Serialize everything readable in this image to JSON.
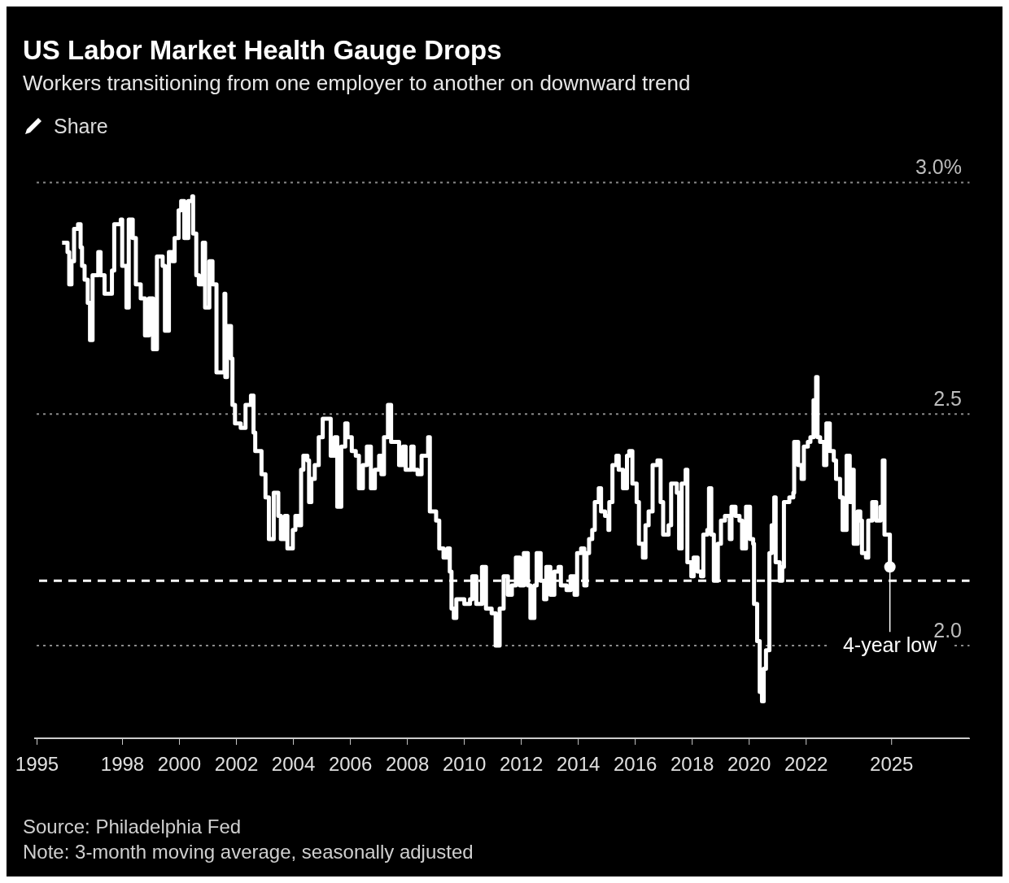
{
  "chart_data": {
    "type": "step",
    "title": "US Labor Market Health Gauge Drops",
    "subtitle": "Workers transitioning from one employer to another on downward trend",
    "annotations": [
      "Share",
      {
        "text": "4-year low",
        "x": 2024.94,
        "y": 2.17
      },
      "Source: Philadelphia Fed",
      "Note: 3-month moving average, seasonally adjusted"
    ],
    "x": [
      1995.88,
      1996.07,
      1996.13,
      1996.21,
      1996.3,
      1996.44,
      1996.53,
      1996.58,
      1996.67,
      1996.78,
      1996.86,
      1996.95,
      1997.15,
      1997.23,
      1997.37,
      1997.51,
      1997.63,
      1997.71,
      1997.94,
      1997.99,
      1998.14,
      1998.22,
      1998.36,
      1998.47,
      1998.64,
      1998.79,
      1998.93,
      1999.07,
      1999.21,
      1999.41,
      1999.49,
      1999.63,
      1999.75,
      1999.83,
      1999.97,
      2000.06,
      2000.17,
      2000.31,
      2000.45,
      2000.48,
      2000.59,
      2000.68,
      2000.82,
      2000.9,
      2001.05,
      2001.16,
      2001.3,
      2001.58,
      2001.61,
      2001.67,
      2001.81,
      2001.86,
      2001.95,
      2002.15,
      2002.32,
      2002.51,
      2002.6,
      2002.66,
      2002.85,
      2002.88,
      2003.02,
      2003.14,
      2003.31,
      2003.47,
      2003.56,
      2003.7,
      2003.79,
      2003.98,
      2004.07,
      2004.18,
      2004.27,
      2004.35,
      2004.49,
      2004.55,
      2004.63,
      2004.75,
      2004.89,
      2005.03,
      2005.2,
      2005.31,
      2005.45,
      2005.54,
      2005.68,
      2005.82,
      2005.9,
      2006.05,
      2006.19,
      2006.3,
      2006.44,
      2006.58,
      2006.72,
      2006.86,
      2007.01,
      2007.09,
      2007.18,
      2007.32,
      2007.43,
      2007.6,
      2007.71,
      2007.85,
      2007.94,
      2008.14,
      2008.22,
      2008.36,
      2008.5,
      2008.73,
      2008.79,
      2009.01,
      2009.12,
      2009.27,
      2009.41,
      2009.49,
      2009.55,
      2009.63,
      2009.72,
      2010.0,
      2010.2,
      2010.28,
      2010.42,
      2010.62,
      2010.76,
      2010.96,
      2011.1,
      2011.24,
      2011.38,
      2011.53,
      2011.67,
      2011.81,
      2011.95,
      2012.09,
      2012.23,
      2012.32,
      2012.46,
      2012.54,
      2012.68,
      2012.8,
      2012.88,
      2013.02,
      2013.16,
      2013.31,
      2013.39,
      2013.59,
      2013.73,
      2013.87,
      2013.96,
      2014.1,
      2014.21,
      2014.29,
      2014.38,
      2014.49,
      2014.58,
      2014.72,
      2014.8,
      2014.94,
      2015.06,
      2015.09,
      2015.2,
      2015.34,
      2015.42,
      2015.57,
      2015.71,
      2015.79,
      2015.9,
      2016.05,
      2016.13,
      2016.27,
      2016.36,
      2016.47,
      2016.61,
      2016.78,
      2016.89,
      2016.98,
      2017.17,
      2017.26,
      2017.46,
      2017.54,
      2017.63,
      2017.77,
      2017.83,
      2017.97,
      2018.05,
      2018.19,
      2018.31,
      2018.39,
      2018.53,
      2018.59,
      2018.67,
      2018.76,
      2018.9,
      2019.01,
      2019.15,
      2019.32,
      2019.38,
      2019.52,
      2019.66,
      2019.75,
      2019.89,
      2020.03,
      2020.14,
      2020.17,
      2020.28,
      2020.37,
      2020.45,
      2020.51,
      2020.59,
      2020.71,
      2020.79,
      2020.88,
      2020.93,
      2021.07,
      2021.16,
      2021.22,
      2021.41,
      2021.55,
      2021.58,
      2021.72,
      2021.84,
      2021.92,
      2022.06,
      2022.15,
      2022.26,
      2022.35,
      2022.4,
      2022.49,
      2022.63,
      2022.71,
      2022.83,
      2022.97,
      2023.05,
      2023.19,
      2023.28,
      2023.42,
      2023.53,
      2023.62,
      2023.67,
      2023.81,
      2023.9,
      2023.96,
      2024.1,
      2024.18,
      2024.32,
      2024.46,
      2024.61,
      2024.69,
      2024.75,
      2024.89,
      2024.94
    ],
    "series": [
      {
        "color": "#ffffff",
        "values": [
          2.87,
          2.85,
          2.78,
          2.83,
          2.9,
          2.91,
          2.86,
          2.82,
          2.79,
          2.74,
          2.66,
          2.8,
          2.85,
          2.8,
          2.76,
          2.76,
          2.81,
          2.91,
          2.92,
          2.82,
          2.73,
          2.92,
          2.88,
          2.78,
          2.75,
          2.67,
          2.75,
          2.64,
          2.84,
          2.82,
          2.68,
          2.85,
          2.83,
          2.88,
          2.94,
          2.96,
          2.88,
          2.96,
          2.97,
          2.89,
          2.8,
          2.78,
          2.87,
          2.73,
          2.83,
          2.78,
          2.59,
          2.76,
          2.58,
          2.69,
          2.62,
          2.52,
          2.48,
          2.47,
          2.52,
          2.54,
          2.46,
          2.42,
          2.42,
          2.37,
          2.32,
          2.23,
          2.33,
          2.28,
          2.23,
          2.28,
          2.21,
          2.25,
          2.28,
          2.26,
          2.38,
          2.41,
          2.4,
          2.31,
          2.36,
          2.39,
          2.45,
          2.49,
          2.49,
          2.41,
          2.45,
          2.3,
          2.43,
          2.48,
          2.45,
          2.42,
          2.41,
          2.34,
          2.39,
          2.43,
          2.34,
          2.38,
          2.41,
          2.37,
          2.45,
          2.52,
          2.44,
          2.44,
          2.39,
          2.43,
          2.38,
          2.43,
          2.38,
          2.37,
          2.41,
          2.45,
          2.29,
          2.27,
          2.21,
          2.19,
          2.21,
          2.16,
          2.08,
          2.06,
          2.1,
          2.09,
          2.1,
          2.15,
          2.09,
          2.17,
          2.08,
          2.07,
          2.0,
          2.08,
          2.15,
          2.11,
          2.13,
          2.19,
          2.13,
          2.2,
          2.13,
          2.06,
          2.13,
          2.2,
          2.14,
          2.1,
          2.17,
          2.11,
          2.16,
          2.17,
          2.13,
          2.12,
          2.15,
          2.11,
          2.2,
          2.21,
          2.13,
          2.2,
          2.23,
          2.25,
          2.31,
          2.34,
          2.29,
          2.28,
          2.25,
          2.31,
          2.39,
          2.41,
          2.38,
          2.34,
          2.41,
          2.42,
          2.35,
          2.31,
          2.22,
          2.19,
          2.26,
          2.29,
          2.39,
          2.4,
          2.31,
          2.24,
          2.26,
          2.35,
          2.33,
          2.21,
          2.35,
          2.38,
          2.18,
          2.15,
          2.19,
          2.16,
          2.15,
          2.24,
          2.25,
          2.34,
          2.24,
          2.14,
          2.22,
          2.27,
          2.28,
          2.23,
          2.3,
          2.28,
          2.27,
          2.21,
          2.3,
          2.23,
          2.22,
          2.09,
          2.01,
          1.9,
          1.88,
          1.95,
          1.99,
          2.2,
          2.26,
          2.32,
          2.18,
          2.14,
          2.17,
          2.31,
          2.32,
          2.33,
          2.44,
          2.39,
          2.36,
          2.43,
          2.44,
          2.45,
          2.53,
          2.58,
          2.45,
          2.44,
          2.39,
          2.48,
          2.42,
          2.4,
          2.36,
          2.32,
          2.25,
          2.41,
          2.31,
          2.38,
          2.22,
          2.29,
          2.27,
          2.2,
          2.19,
          2.27,
          2.31,
          2.27,
          2.3,
          2.4,
          2.24,
          2.24,
          2.17
        ]
      }
    ],
    "xlim": [
      1994.9,
      2027.75
    ],
    "xticks": [
      1995,
      1998,
      2000,
      2002,
      2004,
      2006,
      2008,
      2010,
      2012,
      2014,
      2016,
      2018,
      2020,
      2022,
      2025
    ],
    "ylim": [
      1.8,
      3.05
    ],
    "yticks": [
      {
        "value": 2,
        "label": "2.0"
      },
      2.5,
      {
        "value": 3,
        "label": "3.0%"
      }
    ],
    "grid": "y",
    "ref_lines": [
      {
        "axis": "y",
        "value": 2.14,
        "color": "#ffffff",
        "line_style": "dashed"
      }
    ]
  }
}
